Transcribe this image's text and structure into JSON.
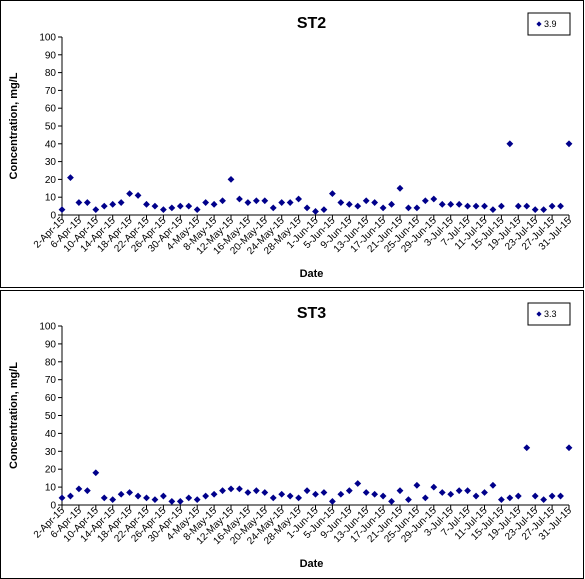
{
  "chart_data": [
    {
      "type": "scatter",
      "title": "ST2",
      "xlabel": "Date",
      "ylabel": "Concentration, mg/L",
      "ylim": [
        0,
        100
      ],
      "yticks": [
        "0",
        "10",
        "20",
        "30",
        "40",
        "50",
        "60",
        "70",
        "80",
        "90",
        "100"
      ],
      "xlim": [
        "2-Apr-15",
        "31-Jul-15"
      ],
      "xticks": [
        "2-Apr-15",
        "6-Apr-15",
        "10-Apr-15",
        "14-Apr-15",
        "18-Apr-15",
        "22-Apr-15",
        "26-Apr-15",
        "30-Apr-15",
        "4-May-15",
        "8-May-15",
        "12-May-15",
        "16-May-15",
        "20-May-15",
        "24-May-15",
        "28-May-15",
        "1-Jun-15",
        "5-Jun-15",
        "9-Jun-15",
        "13-Jun-15",
        "17-Jun-15",
        "21-Jun-15",
        "25-Jun-15",
        "29-Jun-15",
        "3-Jul-15",
        "7-Jul-15",
        "11-Jul-15",
        "15-Jul-15",
        "19-Jul-15",
        "23-Jul-15",
        "27-Jul-15",
        "31-Jul-15"
      ],
      "grid": false,
      "legend_position": "top-right",
      "marker_color": "#00008b",
      "series": [
        {
          "name": "3.9",
          "x": [
            "2-Apr-15",
            "4-Apr-15",
            "6-Apr-15",
            "8-Apr-15",
            "10-Apr-15",
            "12-Apr-15",
            "14-Apr-15",
            "16-Apr-15",
            "18-Apr-15",
            "20-Apr-15",
            "22-Apr-15",
            "24-Apr-15",
            "26-Apr-15",
            "28-Apr-15",
            "30-Apr-15",
            "2-May-15",
            "4-May-15",
            "6-May-15",
            "8-May-15",
            "10-May-15",
            "12-May-15",
            "14-May-15",
            "16-May-15",
            "18-May-15",
            "20-May-15",
            "22-May-15",
            "24-May-15",
            "26-May-15",
            "28-May-15",
            "30-May-15",
            "1-Jun-15",
            "3-Jun-15",
            "5-Jun-15",
            "7-Jun-15",
            "9-Jun-15",
            "11-Jun-15",
            "13-Jun-15",
            "15-Jun-15",
            "17-Jun-15",
            "19-Jun-15",
            "21-Jun-15",
            "23-Jun-15",
            "25-Jun-15",
            "27-Jun-15",
            "29-Jun-15",
            "1-Jul-15",
            "3-Jul-15",
            "5-Jul-15",
            "7-Jul-15",
            "9-Jul-15",
            "11-Jul-15",
            "13-Jul-15",
            "15-Jul-15",
            "17-Jul-15",
            "19-Jul-15",
            "21-Jul-15",
            "23-Jul-15",
            "25-Jul-15",
            "27-Jul-15",
            "29-Jul-15",
            "31-Jul-15"
          ],
          "y": [
            3,
            21,
            7,
            7,
            3,
            5,
            6,
            7,
            12,
            11,
            6,
            5,
            3,
            4,
            5,
            5,
            3,
            7,
            6,
            8,
            20,
            9,
            7,
            8,
            8,
            4,
            7,
            7,
            9,
            4,
            2,
            3,
            12,
            7,
            6,
            5,
            8,
            7,
            4,
            6,
            15,
            4,
            4,
            8,
            9,
            6,
            6,
            6,
            5,
            5,
            5,
            3,
            5,
            40,
            5,
            5,
            3,
            3,
            5,
            5,
            40
          ]
        }
      ]
    },
    {
      "type": "scatter",
      "title": "ST3",
      "xlabel": "Date",
      "ylabel": "Concentration, mg/L",
      "ylim": [
        0,
        100
      ],
      "yticks": [
        "0",
        "10",
        "20",
        "30",
        "40",
        "50",
        "60",
        "70",
        "80",
        "90",
        "100"
      ],
      "xlim": [
        "2-Apr-15",
        "31-Jul-15"
      ],
      "xticks": [
        "2-Apr-15",
        "6-Apr-15",
        "10-Apr-15",
        "14-Apr-15",
        "18-Apr-15",
        "22-Apr-15",
        "26-Apr-15",
        "30-Apr-15",
        "4-May-15",
        "8-May-15",
        "12-May-15",
        "16-May-15",
        "20-May-15",
        "24-May-15",
        "28-May-15",
        "1-Jun-15",
        "5-Jun-15",
        "9-Jun-15",
        "13-Jun-15",
        "17-Jun-15",
        "21-Jun-15",
        "25-Jun-15",
        "29-Jun-15",
        "3-Jul-15",
        "7-Jul-15",
        "11-Jul-15",
        "15-Jul-15",
        "19-Jul-15",
        "23-Jul-15",
        "27-Jul-15",
        "31-Jul-15"
      ],
      "grid": false,
      "legend_position": "top-right",
      "marker_color": "#00008b",
      "series": [
        {
          "name": "3.3",
          "x": [
            "2-Apr-15",
            "4-Apr-15",
            "6-Apr-15",
            "8-Apr-15",
            "10-Apr-15",
            "12-Apr-15",
            "14-Apr-15",
            "16-Apr-15",
            "18-Apr-15",
            "20-Apr-15",
            "22-Apr-15",
            "24-Apr-15",
            "26-Apr-15",
            "28-Apr-15",
            "30-Apr-15",
            "2-May-15",
            "4-May-15",
            "6-May-15",
            "8-May-15",
            "10-May-15",
            "12-May-15",
            "14-May-15",
            "16-May-15",
            "18-May-15",
            "20-May-15",
            "22-May-15",
            "24-May-15",
            "26-May-15",
            "28-May-15",
            "30-May-15",
            "1-Jun-15",
            "3-Jun-15",
            "5-Jun-15",
            "7-Jun-15",
            "9-Jun-15",
            "11-Jun-15",
            "13-Jun-15",
            "15-Jun-15",
            "17-Jun-15",
            "19-Jun-15",
            "21-Jun-15",
            "23-Jun-15",
            "25-Jun-15",
            "27-Jun-15",
            "29-Jun-15",
            "1-Jul-15",
            "3-Jul-15",
            "5-Jul-15",
            "7-Jul-15",
            "9-Jul-15",
            "11-Jul-15",
            "13-Jul-15",
            "15-Jul-15",
            "17-Jul-15",
            "19-Jul-15",
            "21-Jul-15",
            "23-Jul-15",
            "25-Jul-15",
            "27-Jul-15",
            "29-Jul-15",
            "31-Jul-15"
          ],
          "y": [
            4,
            5,
            9,
            8,
            18,
            4,
            3,
            6,
            7,
            5,
            4,
            3,
            5,
            2,
            2,
            4,
            3,
            5,
            6,
            8,
            9,
            9,
            7,
            8,
            7,
            4,
            6,
            5,
            4,
            8,
            6,
            7,
            2,
            6,
            8,
            12,
            7,
            6,
            5,
            2,
            8,
            3,
            11,
            4,
            10,
            7,
            6,
            8,
            8,
            5,
            7,
            11,
            3,
            4,
            5,
            32,
            5,
            3,
            5,
            5,
            32
          ]
        }
      ]
    }
  ]
}
